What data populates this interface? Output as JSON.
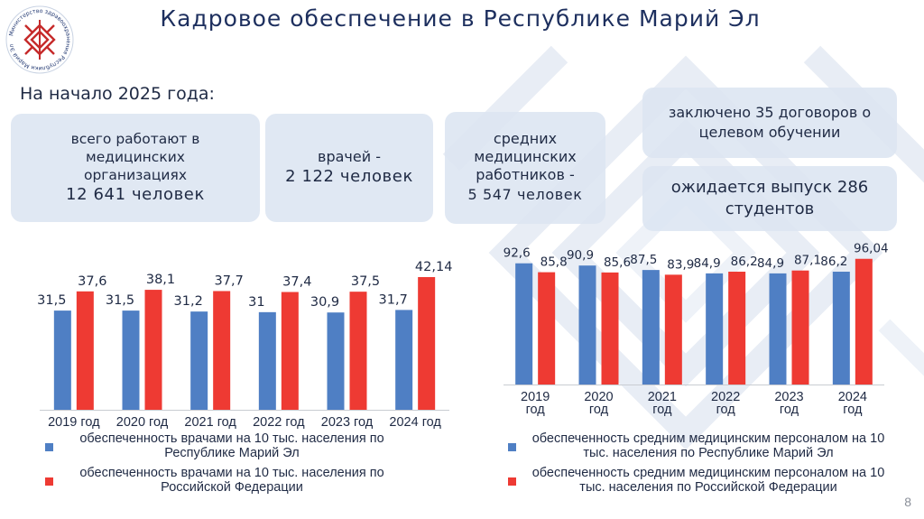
{
  "header": {
    "title": "Кадровое обеспечение в Республике Марий Эл",
    "logo_text": "Министерство здравоохранения Республики Марий Эл"
  },
  "as_of": "На начало 2025 года:",
  "cards": {
    "total": {
      "label": "всего работают в медицинских организациях",
      "value": "12 641 человек"
    },
    "doctors": {
      "label": "врачей -",
      "value": "2 122 человек"
    },
    "nurses": {
      "label": "средних медицинских работников -",
      "value": "5 547 человек"
    },
    "contracts": {
      "text": "заключено 35 договоров о целевом обучении"
    },
    "graduates": {
      "text": "ожидается выпуск 286 студентов"
    }
  },
  "colors": {
    "blue": "#4f7fc4",
    "red": "#ee3a33",
    "title": "#1d2f5e",
    "card": "#dce5f1"
  },
  "chart_data": [
    {
      "type": "bar",
      "categories": [
        "2019 год",
        "2020 год",
        "2021 год",
        "2022 год",
        "2023 год",
        "2024 год"
      ],
      "series": [
        {
          "name": "обеспеченность врачами на 10 тыс. населения по Республике Марий Эл",
          "values": [
            31.5,
            31.5,
            31.2,
            31,
            30.9,
            31.7
          ],
          "labels": [
            "31,5",
            "31,5",
            "31,2",
            "31",
            "30,9",
            "31,7"
          ]
        },
        {
          "name": "обеспеченность врачами на 10 тыс. населения по Российской Федерации",
          "values": [
            37.6,
            38.1,
            37.7,
            37.4,
            37.5,
            42.14
          ],
          "labels": [
            "37,6",
            "38,1",
            "37,7",
            "37,4",
            "37,5",
            "42,14"
          ]
        }
      ],
      "ylim": [
        0,
        45
      ],
      "legend": "bottom",
      "grid": false
    },
    {
      "type": "bar",
      "categories": [
        "2019 год",
        "2020 год",
        "2021 год",
        "2022 год",
        "2023 год",
        "2024 год"
      ],
      "series": [
        {
          "name": "обеспеченность средним медицинским персоналом на 10 тыс. населения по Республике Марий Эл",
          "values": [
            92.6,
            90.9,
            87.5,
            84.9,
            84.9,
            86.2
          ],
          "labels": [
            "92,6",
            "90,9",
            "87,5",
            "84,9",
            "84,9",
            "86,2"
          ]
        },
        {
          "name": "обеспеченность средним медицинским персоналом на 10 тыс. населения по Российской Федерации",
          "values": [
            85.8,
            85.6,
            83.9,
            86.2,
            87.1,
            96.04
          ],
          "labels": [
            "85,8",
            "85,6",
            "83,9",
            "86,2",
            "87,1",
            "96,04"
          ]
        }
      ],
      "ylim": [
        0,
        100
      ],
      "legend": "bottom",
      "grid": false
    }
  ],
  "page_number": "8"
}
